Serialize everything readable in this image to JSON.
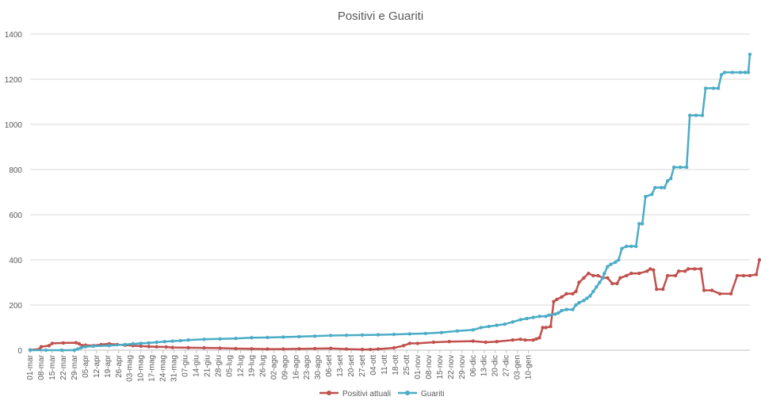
{
  "chart_data": {
    "type": "line",
    "title": "Positivi e Guariti",
    "xlabel": "",
    "ylabel": "",
    "ylim": [
      0,
      1400
    ],
    "yticks": [
      0,
      200,
      400,
      600,
      800,
      1000,
      1200,
      1400
    ],
    "grid": true,
    "legend_position": "bottom",
    "x_tick_labels": [
      "01-mar",
      "08-mar",
      "15-mar",
      "22-mar",
      "29-mar",
      "05-apr",
      "12-apr",
      "19-apr",
      "26-apr",
      "03-mag",
      "10-mag",
      "17-mag",
      "24-mag",
      "31-mag",
      "07-giu",
      "14-giu",
      "21-giu",
      "28-giu",
      "05-lug",
      "12-lug",
      "19-lug",
      "26-lug",
      "02-ago",
      "09-ago",
      "16-ago",
      "23-ago",
      "30-ago",
      "06-set",
      "13-set",
      "20-set",
      "27-set",
      "04-ott",
      "11-ott",
      "18-ott",
      "25-ott",
      "01-nov",
      "08-nov",
      "15-nov",
      "22-nov",
      "29-nov",
      "06-dic",
      "13-dic",
      "20-dic",
      "27-dic",
      "03-gen",
      "10-gen"
    ],
    "series": [
      {
        "name": "Positivi attuali",
        "color": "#c0504d",
        "points": [
          [
            0,
            1
          ],
          [
            6,
            5
          ],
          [
            7,
            15
          ],
          [
            12,
            20
          ],
          [
            14,
            30
          ],
          [
            21,
            32
          ],
          [
            29,
            33
          ],
          [
            31,
            28
          ],
          [
            33,
            20
          ],
          [
            35,
            22
          ],
          [
            40,
            20
          ],
          [
            45,
            25
          ],
          [
            50,
            28
          ],
          [
            55,
            25
          ],
          [
            60,
            22
          ],
          [
            65,
            20
          ],
          [
            70,
            18
          ],
          [
            75,
            16
          ],
          [
            80,
            15
          ],
          [
            86,
            14
          ],
          [
            90,
            12
          ],
          [
            100,
            11
          ],
          [
            110,
            10
          ],
          [
            120,
            9
          ],
          [
            130,
            7
          ],
          [
            140,
            6
          ],
          [
            150,
            5
          ],
          [
            160,
            5
          ],
          [
            170,
            6
          ],
          [
            180,
            7
          ],
          [
            190,
            8
          ],
          [
            200,
            5
          ],
          [
            210,
            3
          ],
          [
            215,
            3
          ],
          [
            220,
            5
          ],
          [
            230,
            10
          ],
          [
            236,
            20
          ],
          [
            240,
            30
          ],
          [
            245,
            30
          ],
          [
            255,
            35
          ],
          [
            265,
            38
          ],
          [
            280,
            40
          ],
          [
            288,
            35
          ],
          [
            295,
            38
          ],
          [
            305,
            45
          ],
          [
            310,
            48
          ],
          [
            313,
            45
          ],
          [
            318,
            45
          ],
          [
            320,
            50
          ],
          [
            322,
            55
          ],
          [
            324,
            100
          ],
          [
            326,
            100
          ],
          [
            329,
            105
          ],
          [
            331,
            215
          ],
          [
            333,
            225
          ],
          [
            336,
            235
          ],
          [
            339,
            250
          ],
          [
            343,
            250
          ],
          [
            345,
            260
          ],
          [
            347,
            300
          ],
          [
            350,
            320
          ],
          [
            353,
            340
          ],
          [
            356,
            330
          ],
          [
            359,
            330
          ],
          [
            362,
            320
          ],
          [
            365,
            320
          ],
          [
            368,
            295
          ],
          [
            371,
            295
          ],
          [
            373,
            320
          ],
          [
            377,
            330
          ],
          [
            380,
            340
          ],
          [
            385,
            340
          ],
          [
            390,
            350
          ],
          [
            392,
            360
          ],
          [
            394,
            355
          ],
          [
            396,
            270
          ],
          [
            400,
            270
          ],
          [
            403,
            330
          ],
          [
            408,
            330
          ],
          [
            410,
            350
          ],
          [
            414,
            350
          ],
          [
            416,
            360
          ],
          [
            420,
            360
          ],
          [
            424,
            360
          ],
          [
            426,
            265
          ],
          [
            431,
            265
          ],
          [
            436,
            250
          ],
          [
            443,
            250
          ],
          [
            447,
            330
          ],
          [
            451,
            330
          ],
          [
            455,
            330
          ],
          [
            459,
            335
          ],
          [
            461,
            400
          ]
        ]
      },
      {
        "name": "Guariti",
        "color": "#4bacc6",
        "points": [
          [
            0,
            0
          ],
          [
            10,
            0
          ],
          [
            20,
            0
          ],
          [
            28,
            0
          ],
          [
            30,
            5
          ],
          [
            32,
            10
          ],
          [
            35,
            15
          ],
          [
            40,
            18
          ],
          [
            50,
            20
          ],
          [
            60,
            25
          ],
          [
            65,
            28
          ],
          [
            70,
            30
          ],
          [
            75,
            32
          ],
          [
            80,
            35
          ],
          [
            85,
            38
          ],
          [
            90,
            40
          ],
          [
            95,
            42
          ],
          [
            100,
            45
          ],
          [
            110,
            48
          ],
          [
            120,
            50
          ],
          [
            130,
            52
          ],
          [
            140,
            55
          ],
          [
            150,
            56
          ],
          [
            160,
            58
          ],
          [
            170,
            60
          ],
          [
            180,
            62
          ],
          [
            190,
            65
          ],
          [
            200,
            66
          ],
          [
            210,
            67
          ],
          [
            220,
            68
          ],
          [
            230,
            70
          ],
          [
            240,
            72
          ],
          [
            250,
            74
          ],
          [
            260,
            78
          ],
          [
            270,
            85
          ],
          [
            280,
            90
          ],
          [
            285,
            100
          ],
          [
            290,
            105
          ],
          [
            295,
            110
          ],
          [
            300,
            115
          ],
          [
            305,
            125
          ],
          [
            310,
            135
          ],
          [
            314,
            140
          ],
          [
            318,
            145
          ],
          [
            322,
            150
          ],
          [
            326,
            150
          ],
          [
            328,
            155
          ],
          [
            332,
            160
          ],
          [
            334,
            165
          ],
          [
            336,
            175
          ],
          [
            339,
            180
          ],
          [
            343,
            180
          ],
          [
            345,
            200
          ],
          [
            347,
            210
          ],
          [
            350,
            220
          ],
          [
            352,
            230
          ],
          [
            354,
            240
          ],
          [
            356,
            260
          ],
          [
            358,
            280
          ],
          [
            360,
            300
          ],
          [
            362,
            320
          ],
          [
            363,
            340
          ],
          [
            365,
            370
          ],
          [
            367,
            380
          ],
          [
            370,
            390
          ],
          [
            372,
            400
          ],
          [
            374,
            450
          ],
          [
            377,
            460
          ],
          [
            380,
            460
          ],
          [
            383,
            460
          ],
          [
            385,
            560
          ],
          [
            387,
            560
          ],
          [
            389,
            680
          ],
          [
            393,
            690
          ],
          [
            395,
            720
          ],
          [
            399,
            720
          ],
          [
            401,
            720
          ],
          [
            403,
            750
          ],
          [
            405,
            760
          ],
          [
            407,
            810
          ],
          [
            411,
            810
          ],
          [
            415,
            810
          ],
          [
            417,
            1040
          ],
          [
            421,
            1040
          ],
          [
            425,
            1040
          ],
          [
            427,
            1160
          ],
          [
            432,
            1160
          ],
          [
            435,
            1160
          ],
          [
            437,
            1220
          ],
          [
            439,
            1230
          ],
          [
            444,
            1230
          ],
          [
            449,
            1230
          ],
          [
            452,
            1230
          ],
          [
            454,
            1230
          ],
          [
            455,
            1310
          ]
        ]
      }
    ]
  }
}
